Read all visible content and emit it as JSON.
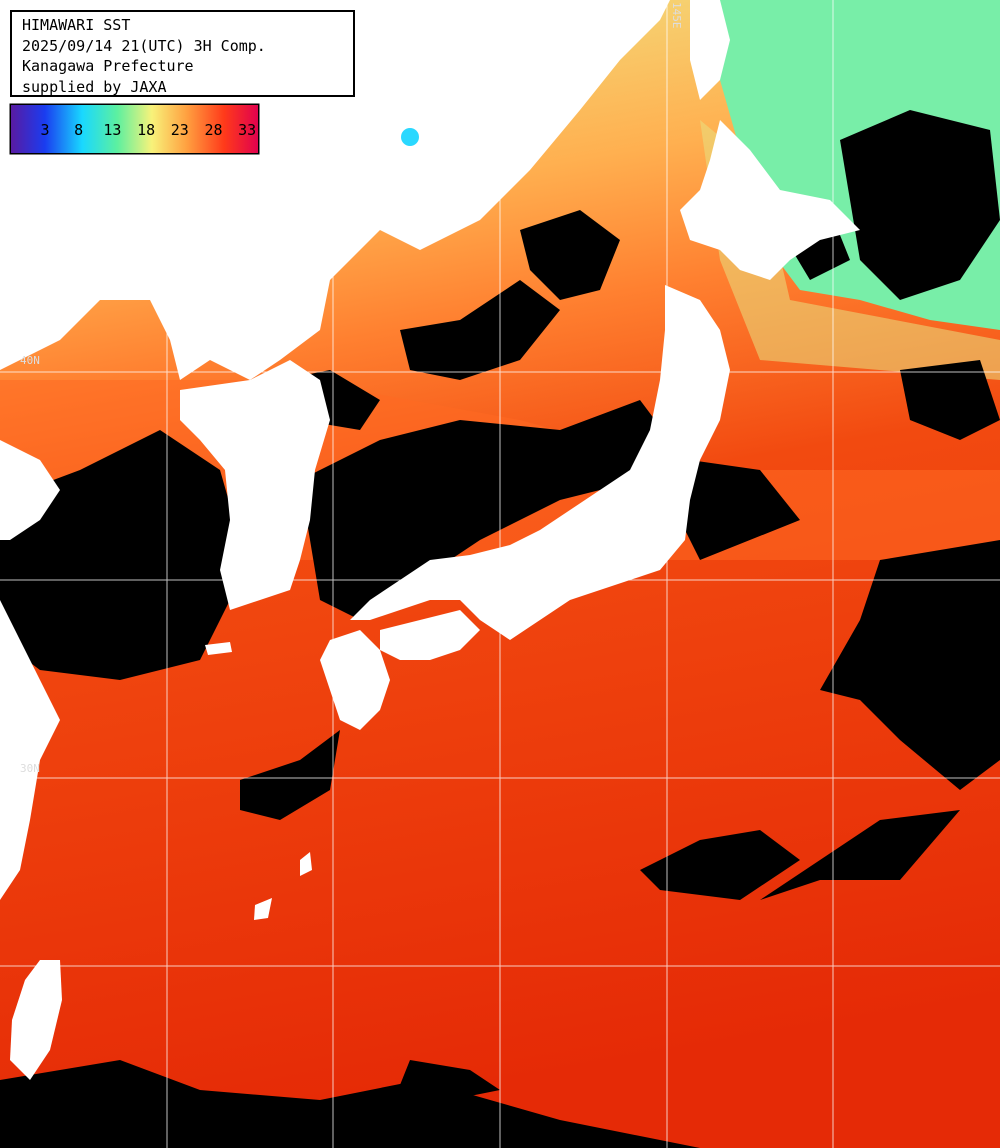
{
  "info": {
    "line1": "HIMAWARI SST",
    "line2": "2025/09/14 21(UTC) 3H Comp.",
    "line3": "Kanagawa Prefecture",
    "line4": "supplied by JAXA"
  },
  "legend": {
    "ticks": [
      "3",
      "8",
      "13",
      "18",
      "23",
      "28",
      "33"
    ],
    "colors": [
      "#5a1aa0",
      "#1a3cf0",
      "#19d8ff",
      "#5cf0a0",
      "#f8f27a",
      "#ffa040",
      "#ff3a1a",
      "#e00050"
    ]
  },
  "grid_labels": {
    "lat_40": "40N",
    "lat_30": "30N",
    "lon_top": "145E"
  },
  "colors": {
    "land": "#ffffff",
    "cloud_mask": "#000000",
    "warm_sea": "#ea2a08",
    "mid_sea": "#ff6a22",
    "cool_sea": "#f4c060",
    "cold_sea": "#70f0a0",
    "grid": "#ffffff"
  }
}
